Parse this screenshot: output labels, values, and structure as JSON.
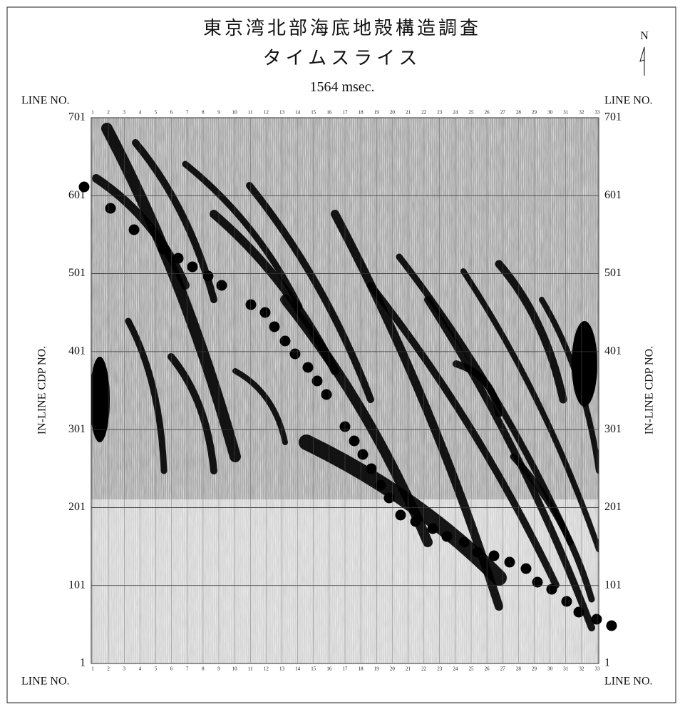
{
  "header": {
    "title": "東京湾北部海底地殻構造調査",
    "subtitle": "タイムスライス",
    "time": "1564 msec."
  },
  "north": "N",
  "line_no_labels": [
    "LINE NO.",
    "LINE NO.",
    "LINE NO.",
    "LINE NO."
  ],
  "cdp_labels": [
    "IN-LINE CDP NO.",
    "IN-LINE CDP NO."
  ],
  "cdp_ticks": [
    "701",
    "601",
    "501",
    "401",
    "301",
    "201",
    "101",
    "1"
  ],
  "line_ticks": [
    "1",
    "2",
    "3",
    "4",
    "5",
    "6",
    "7",
    "8",
    "9",
    "10",
    "11",
    "12",
    "13",
    "14",
    "15",
    "16",
    "17",
    "18",
    "19",
    "20",
    "21",
    "22",
    "23",
    "24",
    "25",
    "26",
    "27",
    "28",
    "29",
    "30",
    "31",
    "32",
    "33"
  ]
}
